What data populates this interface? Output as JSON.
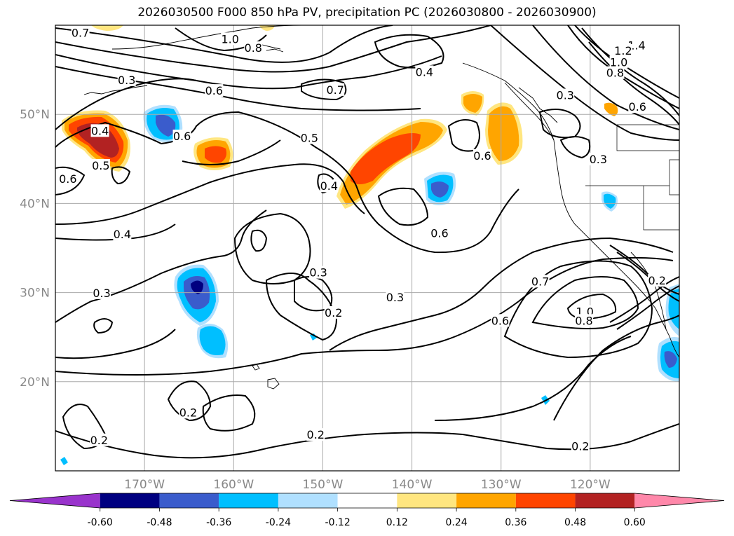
{
  "title": "2026030500 F000 850 hPa PV, precipitation PC (2026030800 - 2026030900)",
  "map": {
    "lon_range": [
      -180,
      -110
    ],
    "lat_range": [
      10,
      60
    ],
    "lon_ticks": [
      {
        "value": -170,
        "label": "170°W"
      },
      {
        "value": -160,
        "label": "160°W"
      },
      {
        "value": -150,
        "label": "150°W"
      },
      {
        "value": -140,
        "label": "140°W"
      },
      {
        "value": -130,
        "label": "130°W"
      },
      {
        "value": -120,
        "label": "120°W"
      }
    ],
    "lat_ticks": [
      {
        "value": 20,
        "label": "20°N"
      },
      {
        "value": 30,
        "label": "30°N"
      },
      {
        "value": 40,
        "label": "40°N"
      },
      {
        "value": 50,
        "label": "50°N"
      }
    ],
    "gridlines": true,
    "contour_labels": [
      {
        "text": "0.7",
        "lon": -177.2,
        "lat": 59.1
      },
      {
        "text": "1.0",
        "lon": -160.4,
        "lat": 58.4
      },
      {
        "text": "0.8",
        "lon": -157.8,
        "lat": 57.4
      },
      {
        "text": "0.4",
        "lon": -138.6,
        "lat": 54.7
      },
      {
        "text": "0.7",
        "lon": -148.6,
        "lat": 52.7
      },
      {
        "text": "0.6",
        "lon": -162.2,
        "lat": 52.6
      },
      {
        "text": "0.3",
        "lon": -172.0,
        "lat": 53.8
      },
      {
        "text": "1.4",
        "lon": -114.8,
        "lat": 57.7
      },
      {
        "text": "1.2",
        "lon": -116.3,
        "lat": 57.1
      },
      {
        "text": "1.0",
        "lon": -116.8,
        "lat": 55.8
      },
      {
        "text": "0.8",
        "lon": -117.2,
        "lat": 54.6
      },
      {
        "text": "0.3",
        "lon": -122.8,
        "lat": 52.1
      },
      {
        "text": "0.6",
        "lon": -114.7,
        "lat": 50.8
      },
      {
        "text": "0.4",
        "lon": -175.0,
        "lat": 48.1
      },
      {
        "text": "0.6",
        "lon": -165.8,
        "lat": 47.5
      },
      {
        "text": "0.5",
        "lon": -151.5,
        "lat": 47.3
      },
      {
        "text": "0.5",
        "lon": -174.9,
        "lat": 44.2
      },
      {
        "text": "0.6",
        "lon": -178.6,
        "lat": 42.7
      },
      {
        "text": "0.4",
        "lon": -149.3,
        "lat": 41.9
      },
      {
        "text": "0.6",
        "lon": -132.1,
        "lat": 45.3
      },
      {
        "text": "0.3",
        "lon": -119.1,
        "lat": 44.9
      },
      {
        "text": "0.4",
        "lon": -172.5,
        "lat": 36.5
      },
      {
        "text": "0.6",
        "lon": -136.9,
        "lat": 36.6
      },
      {
        "text": "0.3",
        "lon": -150.5,
        "lat": 32.2
      },
      {
        "text": "0.3",
        "lon": -174.8,
        "lat": 29.9
      },
      {
        "text": "0.2",
        "lon": -148.8,
        "lat": 27.7
      },
      {
        "text": "0.3",
        "lon": -141.9,
        "lat": 29.4
      },
      {
        "text": "0.7",
        "lon": -125.6,
        "lat": 31.2
      },
      {
        "text": "0.6",
        "lon": -130.1,
        "lat": 26.8
      },
      {
        "text": "1.0",
        "lon": -120.6,
        "lat": 27.8
      },
      {
        "text": "0.8",
        "lon": -120.7,
        "lat": 26.8
      },
      {
        "text": "0.2",
        "lon": -112.5,
        "lat": 31.3
      },
      {
        "text": "0.2",
        "lon": -165.1,
        "lat": 16.5
      },
      {
        "text": "0.2",
        "lon": -175.1,
        "lat": 13.4
      },
      {
        "text": "0.2",
        "lon": -150.8,
        "lat": 14.0
      },
      {
        "text": "0.2",
        "lon": -121.1,
        "lat": 12.7
      }
    ]
  },
  "colorbar": {
    "levels": [
      "-0.60",
      "-0.48",
      "-0.36",
      "-0.24",
      "-0.12",
      "0.12",
      "0.24",
      "0.36",
      "0.48",
      "0.60"
    ],
    "colors": [
      "#9933cc",
      "#000080",
      "#3a5ccc",
      "#00bfff",
      "#b0e0ff",
      "#ffffff",
      "#ffe680",
      "#ffa500",
      "#ff4500",
      "#b22222",
      "#ff88aa"
    ],
    "extend": "both"
  },
  "colors": {
    "contour": "#000000",
    "coastline": "#000000",
    "grid": "#aaaaaa",
    "tick_label": "#888888"
  }
}
